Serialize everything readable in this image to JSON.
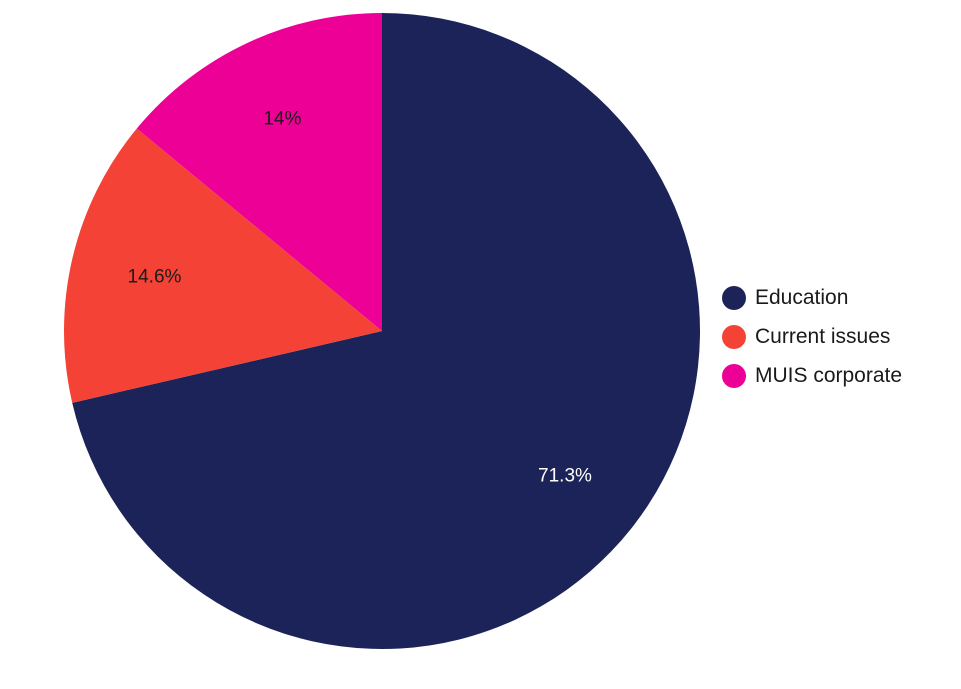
{
  "chart_data": {
    "type": "pie",
    "categories": [
      "Education",
      "Current issues",
      "MUIS corporate"
    ],
    "values": [
      71.3,
      14.6,
      14.0
    ],
    "value_labels": [
      "71.3%",
      "14.6%",
      "14%"
    ],
    "colors": [
      "#1c2358",
      "#f44336",
      "#ec0095"
    ],
    "label_colors": [
      "#ffffff",
      "#1a1a1a",
      "#1a1a1a"
    ],
    "start_angle": "12 o'clock",
    "direction": "clockwise",
    "legend_position": "right"
  }
}
